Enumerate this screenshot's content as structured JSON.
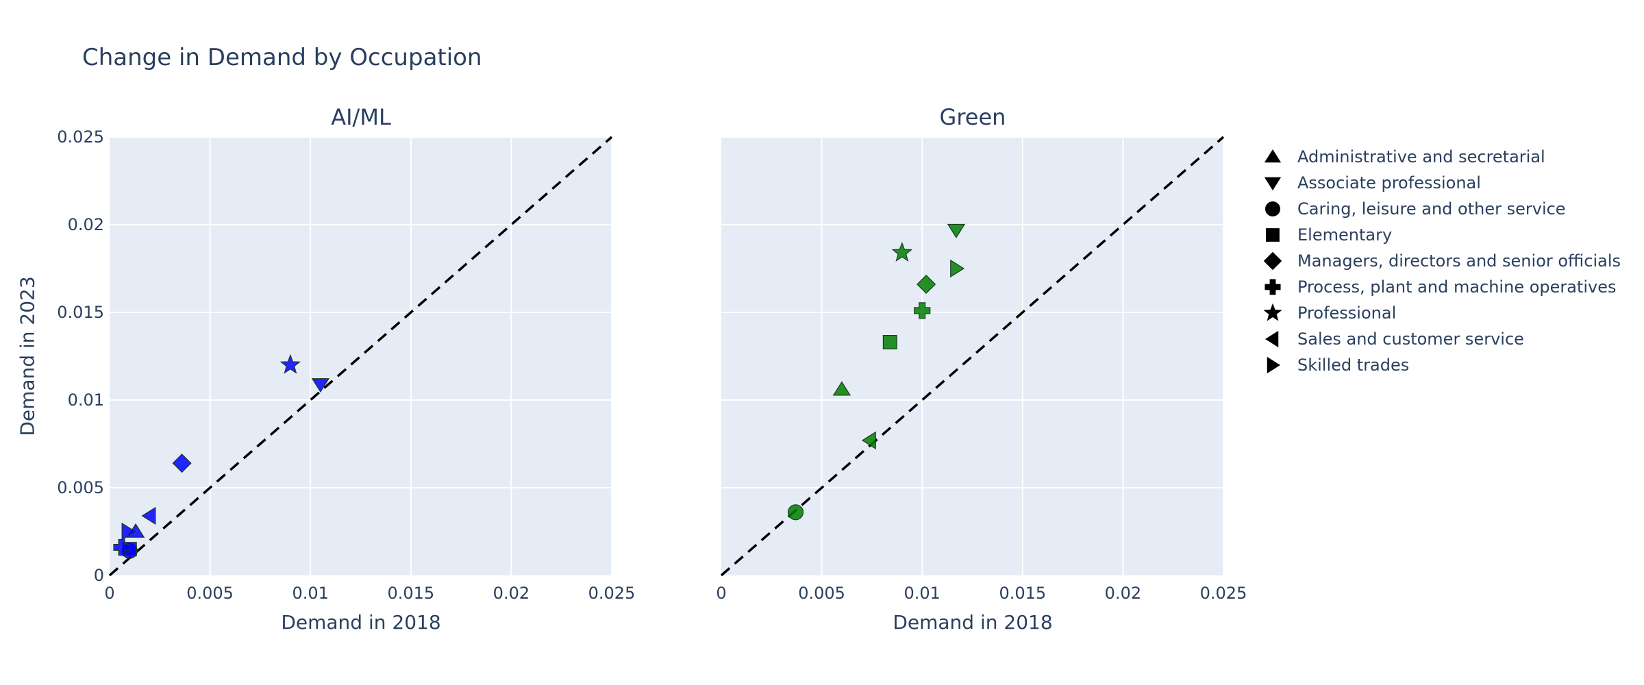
{
  "chart_data": {
    "type": "scatter",
    "title": "Change in Demand by Occupation",
    "subplots": [
      {
        "subtitle": "AI/ML",
        "xlabel": "Demand in 2018",
        "color": "#0000ff",
        "points": [
          {
            "category": "Administrative and secretarial",
            "x": 0.0013,
            "y": 0.0025
          },
          {
            "category": "Associate professional",
            "x": 0.0105,
            "y": 0.0109
          },
          {
            "category": "Caring, leisure and other service",
            "x": 0.001,
            "y": 0.0014
          },
          {
            "category": "Elementary",
            "x": 0.001,
            "y": 0.0015
          },
          {
            "category": "Managers, directors and senior officials",
            "x": 0.0036,
            "y": 0.0064
          },
          {
            "category": "Process, plant and machine operatives",
            "x": 0.0006,
            "y": 0.0016
          },
          {
            "category": "Professional",
            "x": 0.009,
            "y": 0.012
          },
          {
            "category": "Sales and customer service",
            "x": 0.002,
            "y": 0.0034
          },
          {
            "category": "Skilled trades",
            "x": 0.0009,
            "y": 0.0025
          }
        ]
      },
      {
        "subtitle": "Green",
        "xlabel": "Demand in 2018",
        "color": "#008000",
        "points": [
          {
            "category": "Administrative and secretarial",
            "x": 0.006,
            "y": 0.0106
          },
          {
            "category": "Associate professional",
            "x": 0.0117,
            "y": 0.0197
          },
          {
            "category": "Caring, leisure and other service",
            "x": 0.0037,
            "y": 0.0036
          },
          {
            "category": "Elementary",
            "x": 0.0084,
            "y": 0.0133
          },
          {
            "category": "Managers, directors and senior officials",
            "x": 0.0102,
            "y": 0.0166
          },
          {
            "category": "Process, plant and machine operatives",
            "x": 0.01,
            "y": 0.0151
          },
          {
            "category": "Professional",
            "x": 0.009,
            "y": 0.0184
          },
          {
            "category": "Sales and customer service",
            "x": 0.0074,
            "y": 0.0077
          },
          {
            "category": "Skilled trades",
            "x": 0.0117,
            "y": 0.0175
          }
        ]
      }
    ],
    "ylabel": "Demand in 2023",
    "xlim": [
      0,
      0.025
    ],
    "ylim": [
      0,
      0.025
    ],
    "x_ticks": [
      "0",
      "0.005",
      "0.01",
      "0.015",
      "0.02",
      "0.025"
    ],
    "y_ticks": [
      "0",
      "0.005",
      "0.01",
      "0.015",
      "0.02",
      "0.025"
    ],
    "tick_values": [
      0,
      0.005,
      0.01,
      0.015,
      0.02,
      0.025
    ],
    "reference_line": "y = x (dashed)",
    "grid": true,
    "plot_background": "#e5ecf6",
    "legend_position": "right",
    "legend": [
      {
        "label": "Administrative and secretarial",
        "symbol": "triangle-up"
      },
      {
        "label": "Associate professional",
        "symbol": "triangle-down"
      },
      {
        "label": "Caring, leisure and other service",
        "symbol": "circle"
      },
      {
        "label": "Elementary",
        "symbol": "square"
      },
      {
        "label": "Managers, directors and senior officials",
        "symbol": "diamond"
      },
      {
        "label": "Process, plant and machine operatives",
        "symbol": "cross"
      },
      {
        "label": "Professional",
        "symbol": "star"
      },
      {
        "label": "Sales and customer service",
        "symbol": "triangle-left"
      },
      {
        "label": "Skilled trades",
        "symbol": "triangle-right"
      }
    ]
  }
}
